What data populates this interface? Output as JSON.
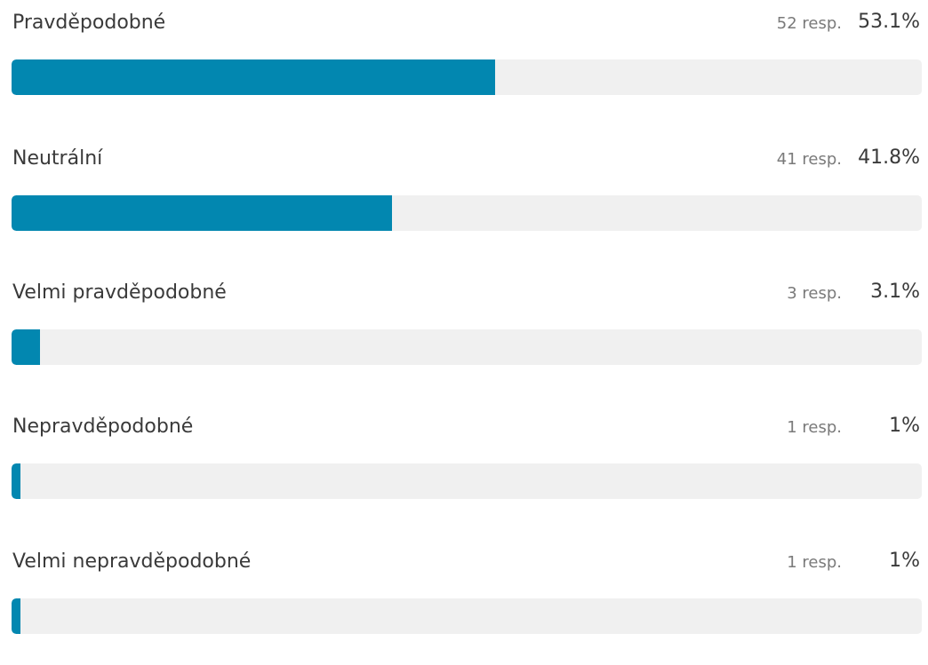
{
  "chart_data": {
    "type": "bar",
    "orientation": "horizontal",
    "title": "",
    "xlabel": "",
    "ylabel": "",
    "xlim": [
      0,
      100
    ],
    "bar_color": "#0287b0",
    "track_color": "#f0f0f0",
    "categories": [
      "Pravděpodobné",
      "Neutrální",
      "Velmi pravděpodobné",
      "Nepravděpodobné",
      "Velmi nepravděpodobné"
    ],
    "series": [
      {
        "values": [
          53.1,
          41.8,
          3.1,
          1,
          1
        ]
      }
    ],
    "items": [
      {
        "label": "Pravděpodobné",
        "count": "52 resp.",
        "percent_label": "53.1%",
        "percent": 53.1
      },
      {
        "label": "Neutrální",
        "count": "41 resp.",
        "percent_label": "41.8%",
        "percent": 41.8
      },
      {
        "label": "Velmi pravděpodobné",
        "count": "3 resp.",
        "percent_label": "3.1%",
        "percent": 3.1
      },
      {
        "label": "Nepravděpodobné",
        "count": "1 resp.",
        "percent_label": "1%",
        "percent": 1
      },
      {
        "label": "Velmi nepravděpodobné",
        "count": "1 resp.",
        "percent_label": "1%",
        "percent": 1
      }
    ]
  }
}
